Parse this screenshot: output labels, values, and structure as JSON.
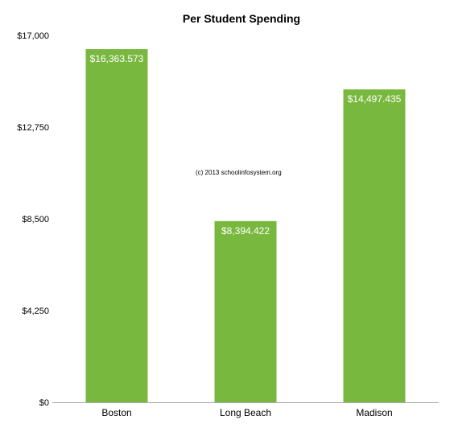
{
  "chart_data": {
    "type": "bar",
    "title": "Per Student Spending",
    "categories": [
      "Boston",
      "Long Beach",
      "Madison"
    ],
    "values": [
      16363.573,
      8394.422,
      14497.435
    ],
    "data_labels": [
      "$16,363.573",
      "$8,394.422",
      "$14,497.435"
    ],
    "yticks": [
      "$0",
      "$4,250",
      "$8,500",
      "$12,750",
      "$17,000"
    ],
    "ytick_values": [
      0,
      4250,
      8500,
      12750,
      17000
    ],
    "ylim": [
      0,
      17000
    ],
    "xlabel": "",
    "ylabel": "",
    "grid": false,
    "bar_color": "#79b83f",
    "annotation": "(c) 2013 schoolinfosystem.org"
  }
}
